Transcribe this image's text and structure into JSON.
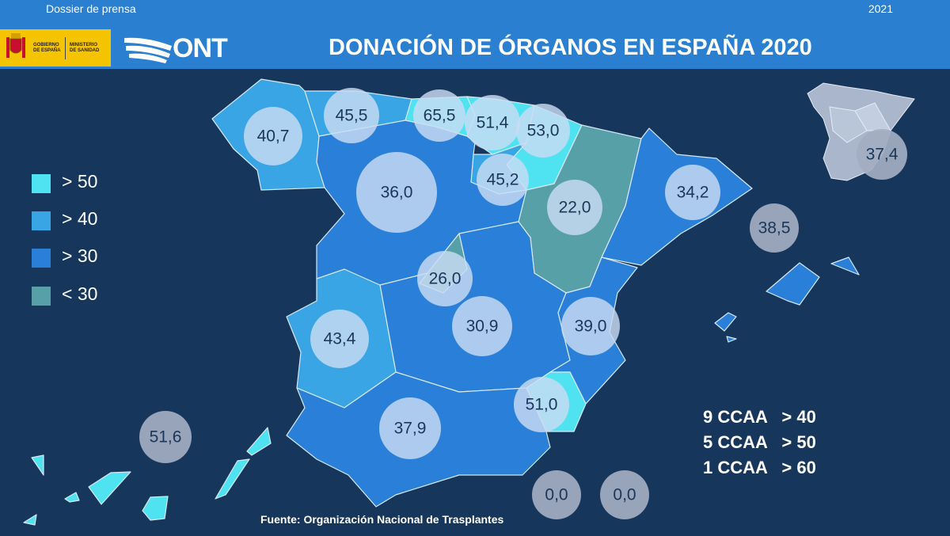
{
  "header": {
    "dossier_label": "Dossier de prensa",
    "year": "2021",
    "gov_line1": "GOBIERNO DE ESPAÑA",
    "gov_line2": "MINISTERIO DE SANIDAD",
    "ont_logo": "ONT",
    "title": "DONACIÓN DE ÓRGANOS EN ESPAÑA 2020"
  },
  "legend": [
    {
      "label": "> 50",
      "color": "#4fe2f0"
    },
    {
      "label": "> 40",
      "color": "#3aa5e4"
    },
    {
      "label": "> 30",
      "color": "#2a80d9"
    },
    {
      "label": "< 30",
      "color": "#57a0a8"
    }
  ],
  "regions": [
    {
      "name": "Galicia",
      "value": "40,7",
      "category": "> 40"
    },
    {
      "name": "Asturias",
      "value": "45,5",
      "category": "> 40"
    },
    {
      "name": "Cantabria",
      "value": "65,5",
      "category": "> 50"
    },
    {
      "name": "País Vasco",
      "value": "51,4",
      "category": "> 50"
    },
    {
      "name": "Navarra",
      "value": "53,0",
      "category": "> 50"
    },
    {
      "name": "La Rioja",
      "value": "45,2",
      "category": "> 40"
    },
    {
      "name": "Aragón",
      "value": "22,0",
      "category": "< 30"
    },
    {
      "name": "Cataluña",
      "value": "34,2",
      "category": "> 30"
    },
    {
      "name": "Castilla y León",
      "value": "36,0",
      "category": "> 30"
    },
    {
      "name": "Madrid",
      "value": "26,0",
      "category": "< 30"
    },
    {
      "name": "Castilla-La Mancha",
      "value": "30,9",
      "category": "> 30"
    },
    {
      "name": "Extremadura",
      "value": "43,4",
      "category": "> 40"
    },
    {
      "name": "Comunidad Valenciana",
      "value": "39,0",
      "category": "> 30"
    },
    {
      "name": "Murcia",
      "value": "51,0",
      "category": "> 50"
    },
    {
      "name": "Andalucía",
      "value": "37,9",
      "category": "> 30"
    },
    {
      "name": "Islas Baleares",
      "value": "38,5",
      "category": "> 30"
    },
    {
      "name": "Canarias",
      "value": "51,6",
      "category": "> 50"
    },
    {
      "name": "Ceuta",
      "value": "0,0",
      "category": ""
    },
    {
      "name": "Melilla",
      "value": "0,0",
      "category": ""
    },
    {
      "name": "España",
      "value": "37,4",
      "category": ""
    }
  ],
  "stats": [
    "9 CCAA   > 40",
    "5 CCAA   > 50",
    "1 CCAA   > 60"
  ],
  "source": "Fuente: Organización Nacional de Trasplantes"
}
